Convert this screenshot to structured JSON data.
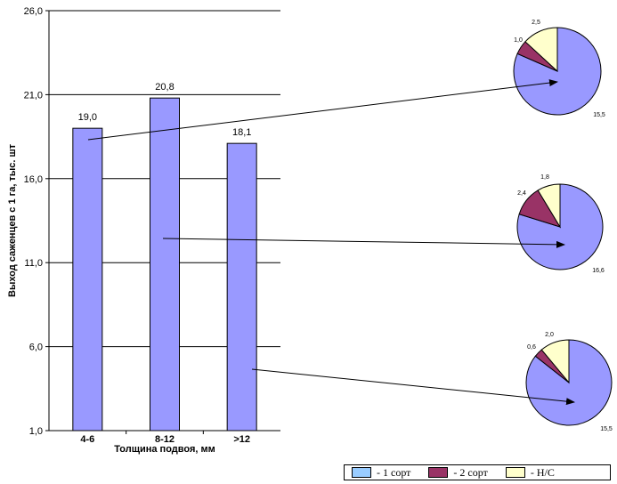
{
  "chart_data": {
    "type": "bar",
    "xlabel": "Толщина подвоя, мм",
    "ylabel": "Выход саженцев с 1 га, тыс. шт",
    "ylim": [
      1.0,
      26.0
    ],
    "yticks": [
      "1,0",
      "6,0",
      "11,0",
      "16,0",
      "21,0",
      "26,0"
    ],
    "grid": true,
    "categories": [
      "4-6",
      "8-12",
      ">12"
    ],
    "values": [
      19.0,
      20.8,
      18.1
    ],
    "value_labels": [
      "19,0",
      "20,8",
      "18,1"
    ],
    "bar_color": "#9999ff",
    "pies": [
      {
        "category": "4-6",
        "type": "pie",
        "values": [
          15.5,
          1.0,
          2.5
        ],
        "labels": [
          "15,5",
          "1,0",
          "2,5"
        ],
        "colors": [
          "#9999ff",
          "#993366",
          "#ffffcc"
        ]
      },
      {
        "category": "8-12",
        "type": "pie",
        "values": [
          16.6,
          2.4,
          1.8
        ],
        "labels": [
          "16,6",
          "2,4",
          "1,8"
        ],
        "colors": [
          "#9999ff",
          "#993366",
          "#ffffcc"
        ]
      },
      {
        "category": ">12",
        "type": "pie",
        "values": [
          15.5,
          0.6,
          2.0
        ],
        "labels": [
          "15,5",
          "0,6",
          "2,0"
        ],
        "colors": [
          "#9999ff",
          "#993366",
          "#ffffcc"
        ]
      }
    ],
    "legend": {
      "placement": "bottom-right",
      "items": [
        {
          "label": "- 1 сорт",
          "color": "#99ccff"
        },
        {
          "label": "- 2 сорт",
          "color": "#993366"
        },
        {
          "label": "- Н/С",
          "color": "#ffffcc"
        }
      ]
    }
  }
}
